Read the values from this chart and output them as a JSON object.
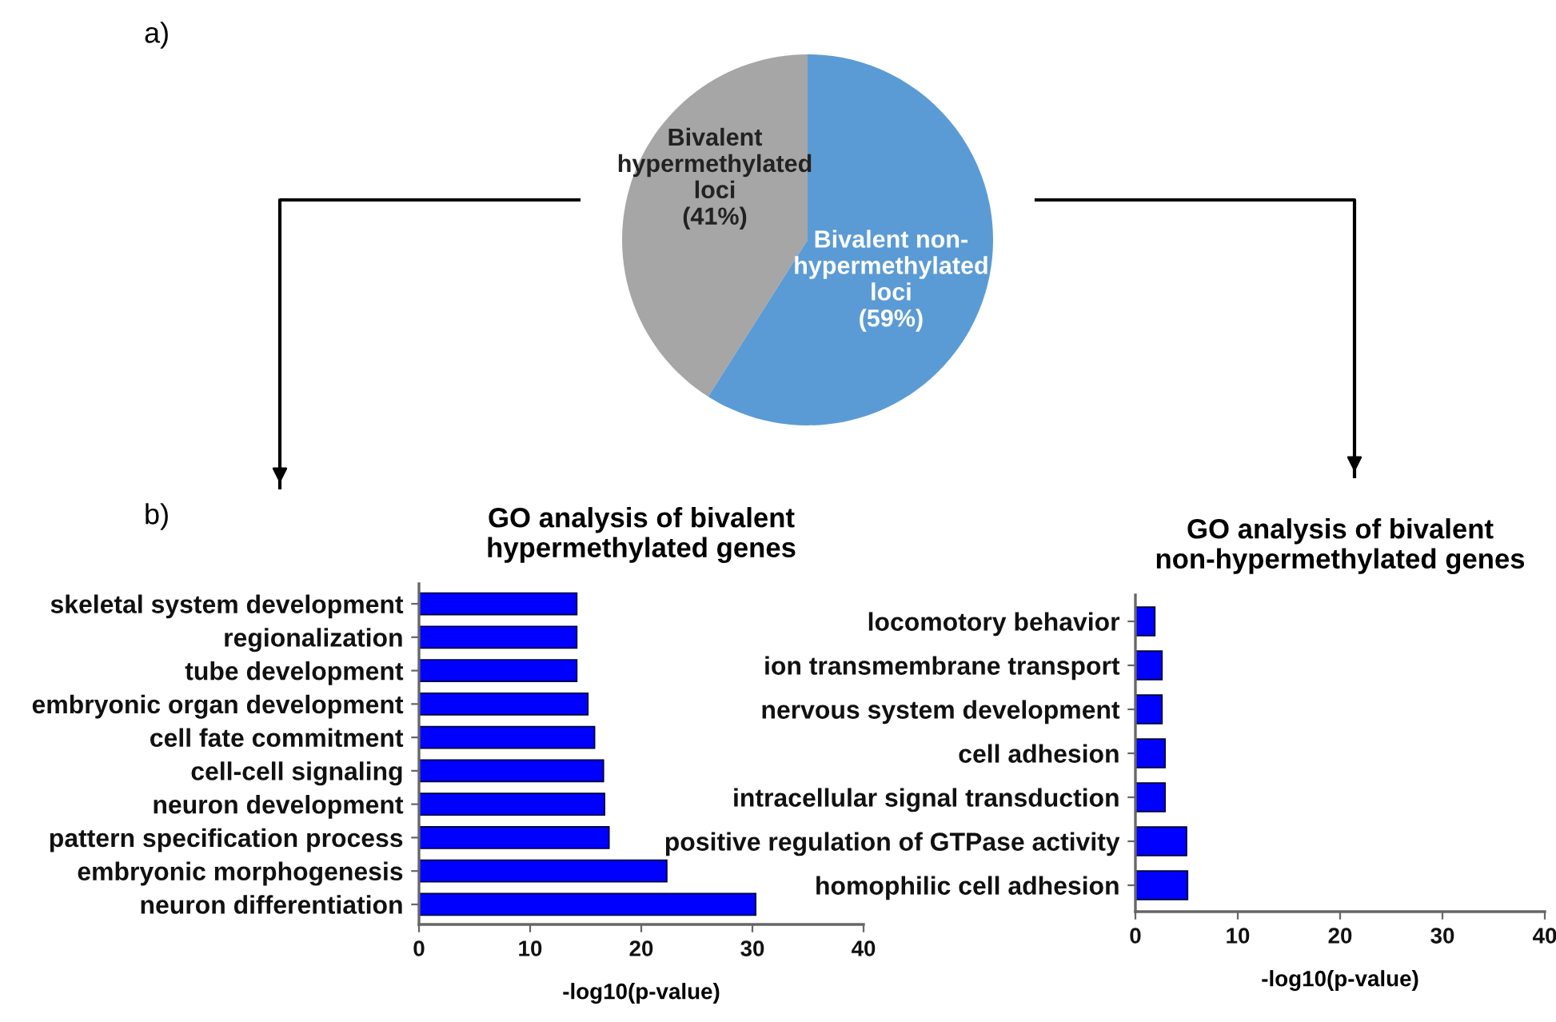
{
  "chart_data": [
    {
      "type": "pie",
      "categories": [
        "Bivalent\nhypermethylated\nloci",
        "Bivalent non-\nhypermethylated\nloci"
      ],
      "values": [
        41,
        59
      ],
      "colors": [
        "#a6a6a6",
        "#5b9bd5"
      ],
      "value_labels": [
        "(41%)",
        "(59%)"
      ],
      "annotations": [
        "a)"
      ]
    },
    {
      "type": "bar",
      "orientation": "horizontal",
      "title": "GO analysis of bivalent\nhypermethylated genes",
      "xlabel": "-log10(p-value)",
      "categories": [
        "skeletal system development",
        "regionalization",
        "tube development",
        "embryonic organ development",
        "cell fate commitment",
        "cell-cell signaling",
        "neuron development",
        "pattern specification process",
        "embryonic morphogenesis",
        "neuron differentiation"
      ],
      "values": [
        14.2,
        14.2,
        14.2,
        15.2,
        15.8,
        16.6,
        16.7,
        17.1,
        22.3,
        30.3
      ],
      "color": "#0000ff",
      "xlim": [
        0,
        40
      ],
      "xticks": [
        0,
        10,
        20,
        30,
        40
      ],
      "annotations": [
        "b)"
      ]
    },
    {
      "type": "bar",
      "orientation": "horizontal",
      "title": "GO analysis of bivalent\nnon-hypermethylated genes",
      "xlabel": "-log10(p-value)",
      "categories": [
        "locomotory behavior",
        "ion transmembrane transport",
        "nervous system development",
        "cell adhesion",
        "intracellular signal transduction",
        "positive regulation of GTPase activity",
        "homophilic cell adhesion"
      ],
      "values": [
        1.9,
        2.6,
        2.6,
        2.9,
        2.9,
        5.0,
        5.1
      ],
      "color": "#0000ff",
      "xlim": [
        0,
        40
      ],
      "xticks": [
        0,
        10,
        20,
        30,
        40
      ]
    }
  ]
}
